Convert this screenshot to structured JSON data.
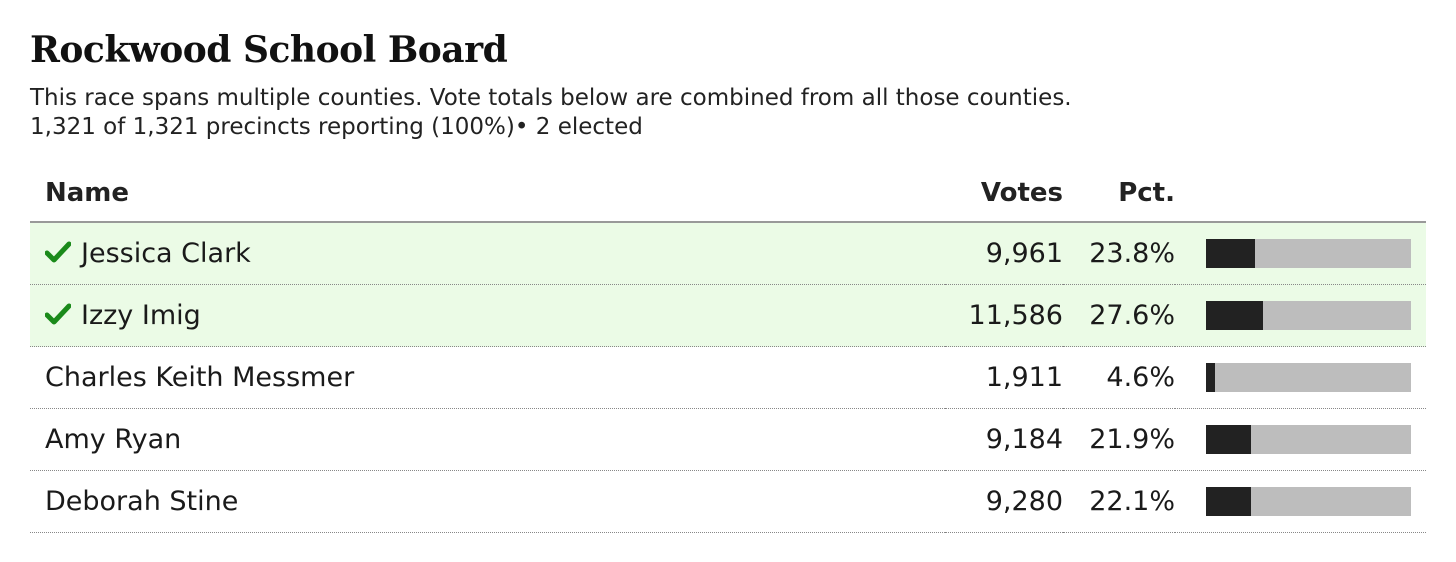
{
  "race": {
    "title": "Rockwood School Board",
    "note": "This race spans multiple counties. Vote totals below are combined from all those counties.",
    "status": "1,321 of 1,321 precincts reporting (100%)• 2 elected"
  },
  "table": {
    "headers": {
      "name": "Name",
      "votes": "Votes",
      "pct": "Pct."
    },
    "rows": [
      {
        "name": "Jessica Clark",
        "votes": "9,961",
        "pct": "23.8%",
        "share": 0.238,
        "winner": true
      },
      {
        "name": "Izzy Imig",
        "votes": "11,586",
        "pct": "27.6%",
        "share": 0.276,
        "winner": true
      },
      {
        "name": "Charles Keith Messmer",
        "votes": "1,911",
        "pct": "4.6%",
        "share": 0.046,
        "winner": false
      },
      {
        "name": "Amy Ryan",
        "votes": "9,184",
        "pct": "21.9%",
        "share": 0.219,
        "winner": false
      },
      {
        "name": "Deborah Stine",
        "votes": "9,280",
        "pct": "22.1%",
        "share": 0.221,
        "winner": false
      }
    ]
  },
  "colors": {
    "winner_bg": "#ebfbe6",
    "check": "#1a8a1a",
    "bar_fill": "#222222",
    "bar_track": "#bdbdbd"
  },
  "icons": {
    "winner": "check-icon"
  }
}
